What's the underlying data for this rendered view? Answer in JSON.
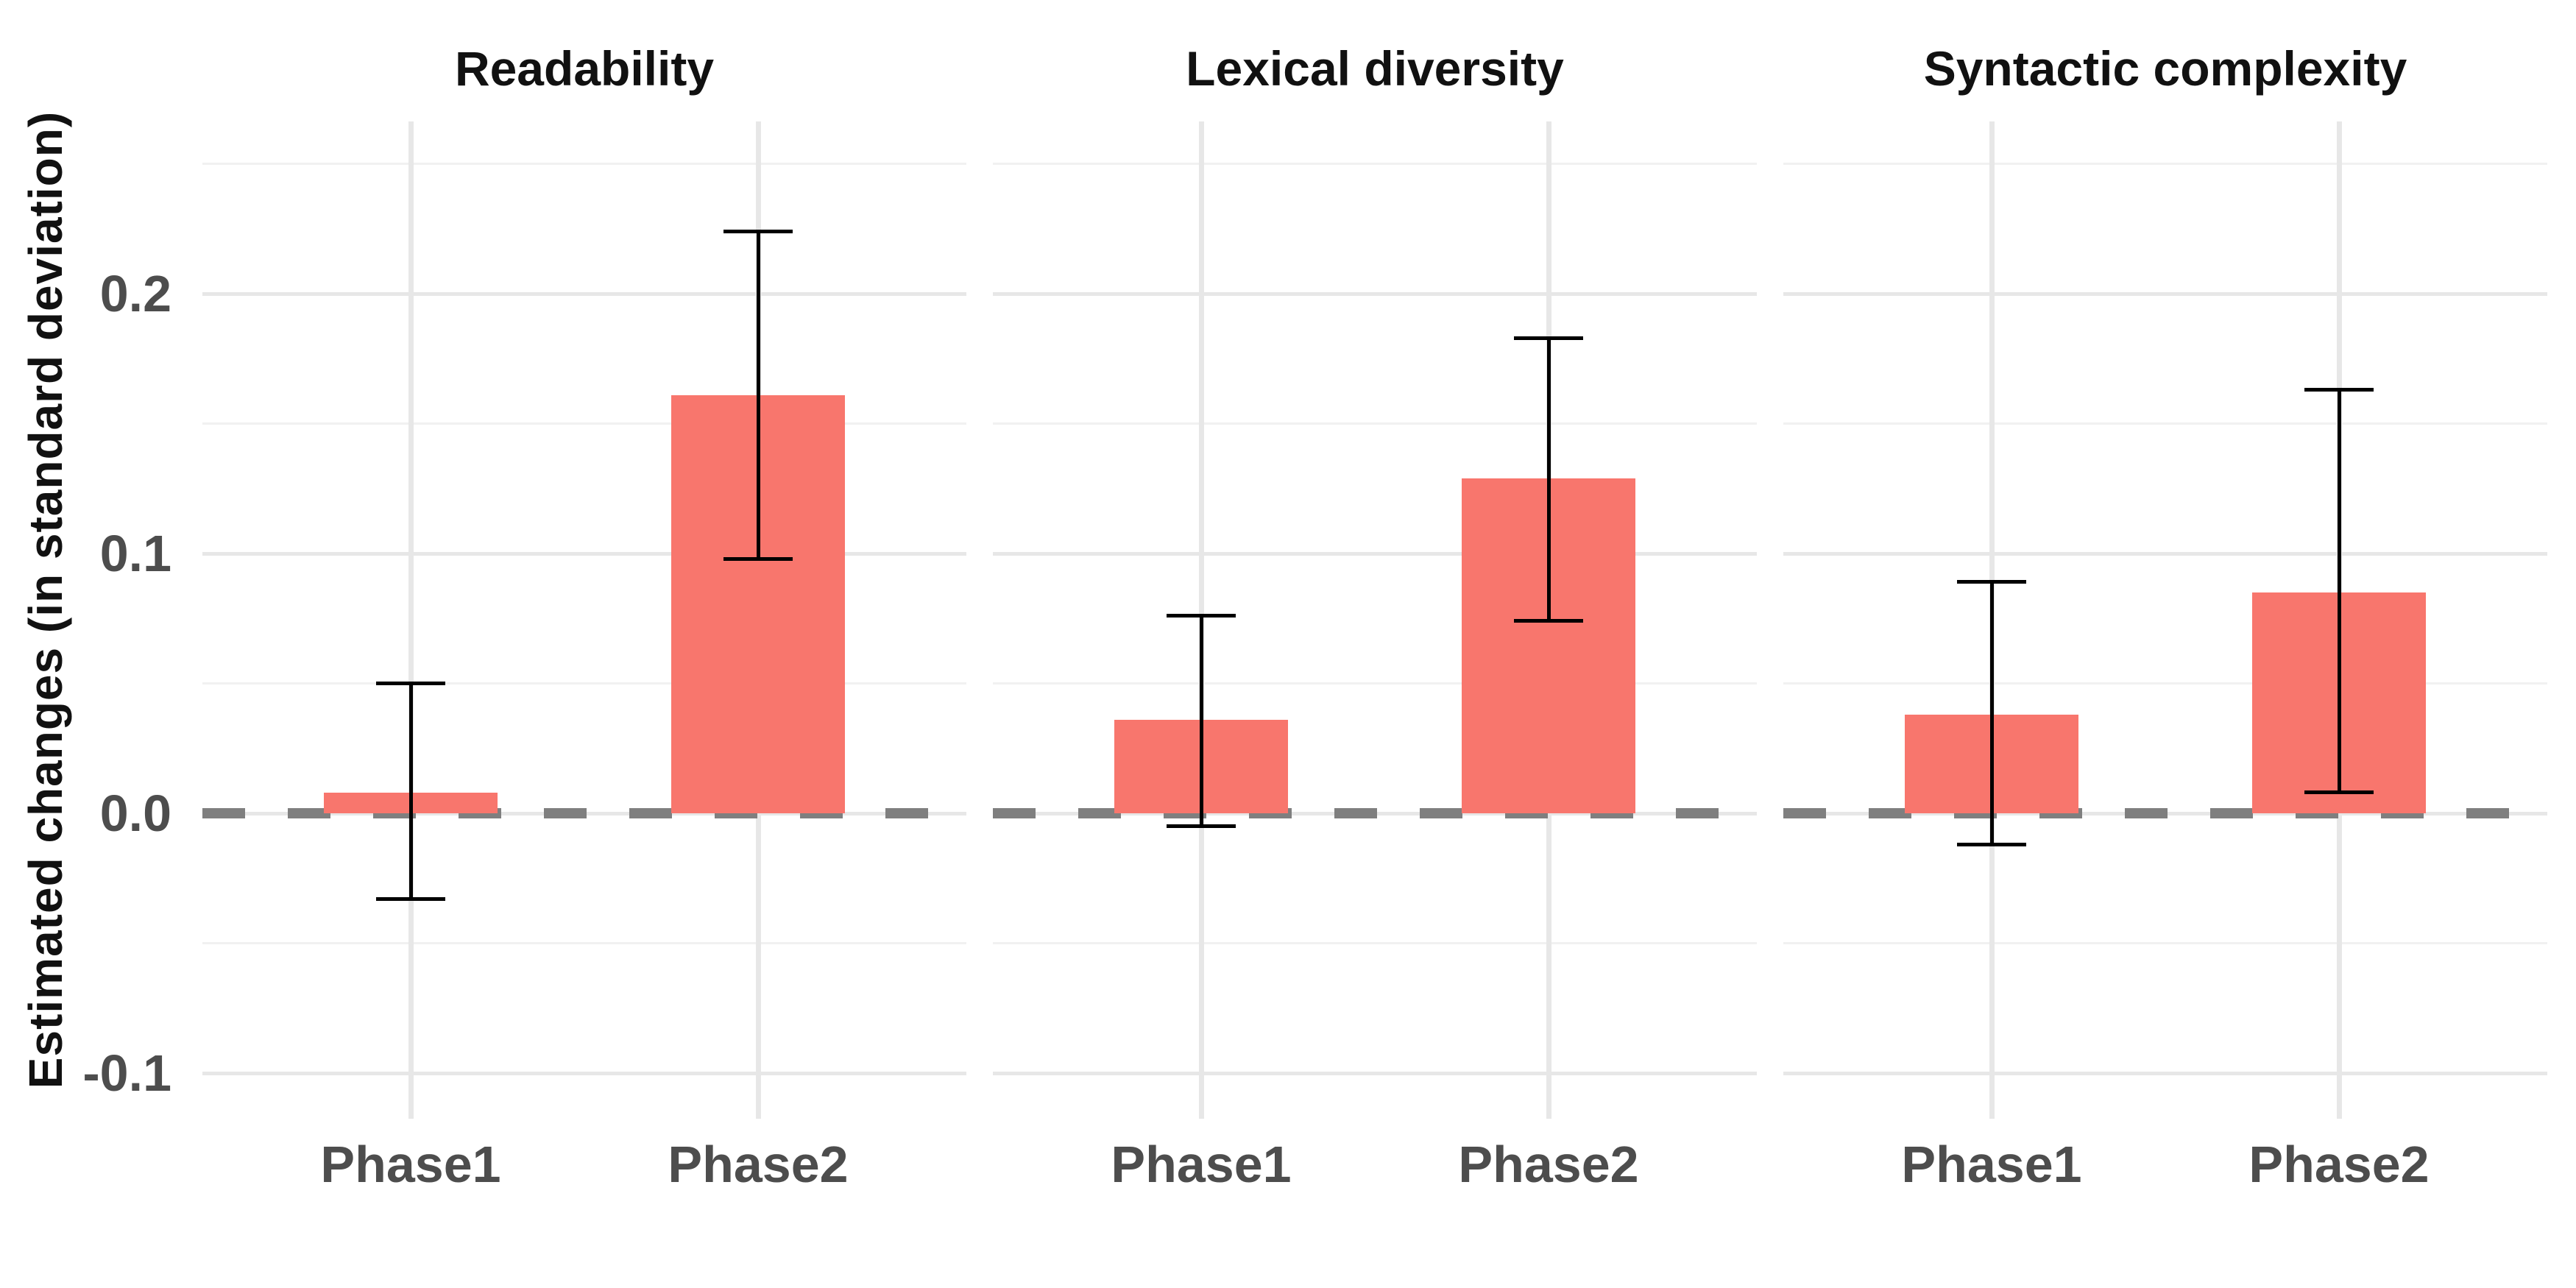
{
  "chart_data": {
    "type": "bar",
    "title": "",
    "ylabel": "Estimated changes (in standard deviation)",
    "xlabel": "",
    "facets": [
      "Readability",
      "Lexical diversity",
      "Syntactic complexity"
    ],
    "categories": [
      "Phase1",
      "Phase2"
    ],
    "yticks": {
      "labels": [
        "0.2",
        "0.1",
        "0.0",
        "-0.1"
      ],
      "values": [
        0.2,
        0.1,
        0.0,
        -0.1
      ]
    },
    "minor_tick_values": [
      0.25,
      0.15,
      0.05,
      -0.05
    ],
    "ylim": [
      -0.118,
      0.266
    ],
    "grid": true,
    "legend": "none",
    "series": [
      {
        "facet": "Readability",
        "values": [
          0.008,
          0.161
        ],
        "ci_low": [
          -0.033,
          0.098
        ],
        "ci_high": [
          0.05,
          0.224
        ]
      },
      {
        "facet": "Lexical diversity",
        "values": [
          0.036,
          0.129
        ],
        "ci_low": [
          -0.005,
          0.074
        ],
        "ci_high": [
          0.076,
          0.183
        ]
      },
      {
        "facet": "Syntactic complexity",
        "values": [
          0.038,
          0.085
        ],
        "ci_low": [
          -0.012,
          0.008
        ],
        "ci_high": [
          0.089,
          0.163
        ]
      }
    ],
    "zero_line": {
      "value": 0.0,
      "style": "dashed",
      "color": "#7f7f7f"
    },
    "colors": {
      "bar": "#F8766D",
      "error_bar": "#000000",
      "grid_major": "#e7e7e7",
      "grid_minor": "#f1f1f1",
      "axis_text": "#4d4d4d",
      "title_text": "#111111",
      "background": "#ffffff"
    }
  }
}
